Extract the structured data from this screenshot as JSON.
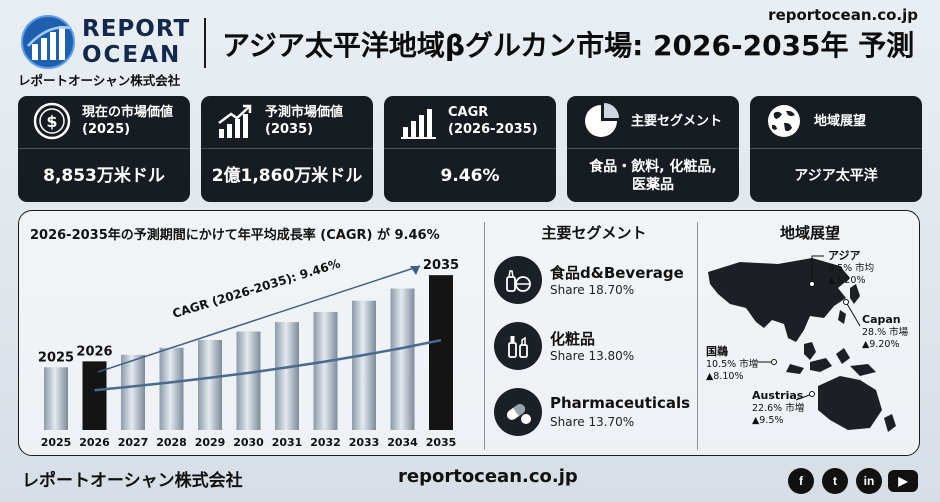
{
  "header": {
    "logo_line1": "REPORT",
    "logo_line2": "OCEAN",
    "logo_sub": "レポートオーシャン株式会社",
    "title": "アジア太平洋地域βグルカン市場: 2026-2035年 予測",
    "site": "reportocean.co.jp"
  },
  "cards": [
    {
      "label": "現在の市場価値\n(2025)",
      "value": "8,853万米ドル",
      "icon": "dollar-coin-icon"
    },
    {
      "label": "予測市場価値\n(2035)",
      "value": "2億1,860万米ドル",
      "icon": "growth-chart-icon"
    },
    {
      "label": "CAGR\n(2026-2035)",
      "value": "9.46%",
      "icon": "bar-chart-icon"
    },
    {
      "label": "主要セグメント",
      "value": "食品・飲料, 化粧品,\n医薬品",
      "icon": "pie-chart-icon"
    },
    {
      "label": "地域展望",
      "value": "アジア太平洋",
      "icon": "globe-icon"
    }
  ],
  "chart_caption": "2026-2035年の予測期間にかけて年平均成長率 (CAGR) が 9.46%",
  "chart_data": {
    "type": "bar",
    "categories": [
      "2025",
      "2026",
      "2027",
      "2028",
      "2029",
      "2030",
      "2031",
      "2032",
      "2033",
      "2034",
      "2035"
    ],
    "values": [
      88.53,
      96.9,
      106.1,
      116.1,
      127.1,
      139.1,
      152.3,
      166.7,
      182.5,
      199.7,
      218.6
    ],
    "highlight_labels": {
      "0": "2025",
      "1": "2026",
      "10": "2035"
    },
    "trend_label": "CAGR (2026-2035): 9.46%",
    "ylim": [
      0,
      240
    ],
    "colors": {
      "bar": "#b7c3cf",
      "highlight": "#141414",
      "trend": "#4a6a8f"
    }
  },
  "segments": {
    "title": "主要セグメント",
    "items": [
      {
        "name": "食品d&Beverage",
        "share": "Share 18.70%",
        "icon": "food-beverage-icon"
      },
      {
        "name": "化粧品",
        "share": "Share 13.80%",
        "icon": "cosmetics-icon"
      },
      {
        "name": "Pharmaceuticals",
        "share": "Share 13.70%",
        "icon": "pills-icon"
      }
    ]
  },
  "regions": {
    "title": "地域展望",
    "items": [
      {
        "name": "アジア",
        "line1": "8.5% 市均",
        "line2": "▲3.20%"
      },
      {
        "name": "Capan",
        "line1": "28.% 市場",
        "line2": "▲9.20%"
      },
      {
        "name": "国鵜",
        "line1": "10.5% 市増",
        "line2": "▲8.10%"
      },
      {
        "name": "Austrias",
        "line1": "22.6% 市増",
        "line2": "▲9.5%"
      }
    ]
  },
  "footer": {
    "company": "レポートオーシャン株式会社",
    "site": "reportocean.co.jp",
    "social": [
      {
        "name": "facebook-icon",
        "glyph": "f"
      },
      {
        "name": "twitter-icon",
        "glyph": "t"
      },
      {
        "name": "linkedin-icon",
        "glyph": "in"
      },
      {
        "name": "youtube-icon",
        "glyph": "▶"
      }
    ]
  }
}
